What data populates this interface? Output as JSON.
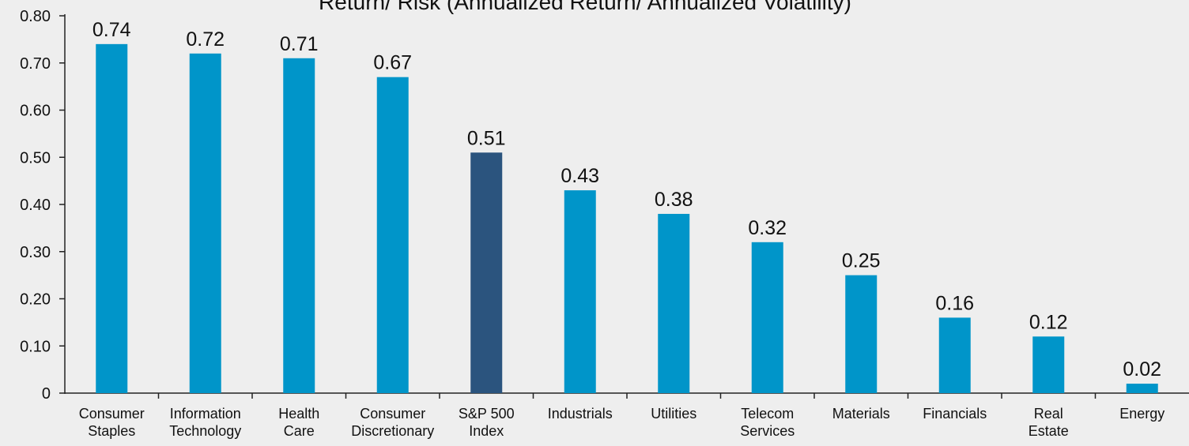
{
  "chart_data": {
    "type": "bar",
    "title": "Return/ Risk (Annualized Return/ Annualized Volatility)",
    "categories": [
      "Consumer\nStaples",
      "Information\nTechnology",
      "Health\nCare",
      "Consumer\nDiscretionary",
      "S&P 500\nIndex",
      "Industrials",
      "Utilities",
      "Telecom\nServices",
      "Materials",
      "Financials",
      "Real\nEstate",
      "Energy"
    ],
    "values": [
      0.74,
      0.72,
      0.71,
      0.67,
      0.51,
      0.43,
      0.38,
      0.32,
      0.25,
      0.16,
      0.12,
      0.02
    ],
    "colors": [
      "#0095c9",
      "#0095c9",
      "#0095c9",
      "#0095c9",
      "#2b547e",
      "#0095c9",
      "#0095c9",
      "#0095c9",
      "#0095c9",
      "#0095c9",
      "#0095c9",
      "#0095c9"
    ],
    "ylim": [
      0,
      0.8
    ],
    "yticks": [
      0,
      {
        "value": 0.1,
        "label": "0.10"
      },
      {
        "value": 0.2,
        "label": "0.20"
      },
      {
        "value": 0.3,
        "label": "0.30"
      },
      {
        "value": 0.4,
        "label": "0.40"
      },
      {
        "value": 0.5,
        "label": "0.50"
      },
      {
        "value": 0.6,
        "label": "0.60"
      },
      {
        "value": 0.7,
        "label": "0.70"
      },
      {
        "value": 0.8,
        "label": "0.80"
      }
    ],
    "grid": false
  }
}
